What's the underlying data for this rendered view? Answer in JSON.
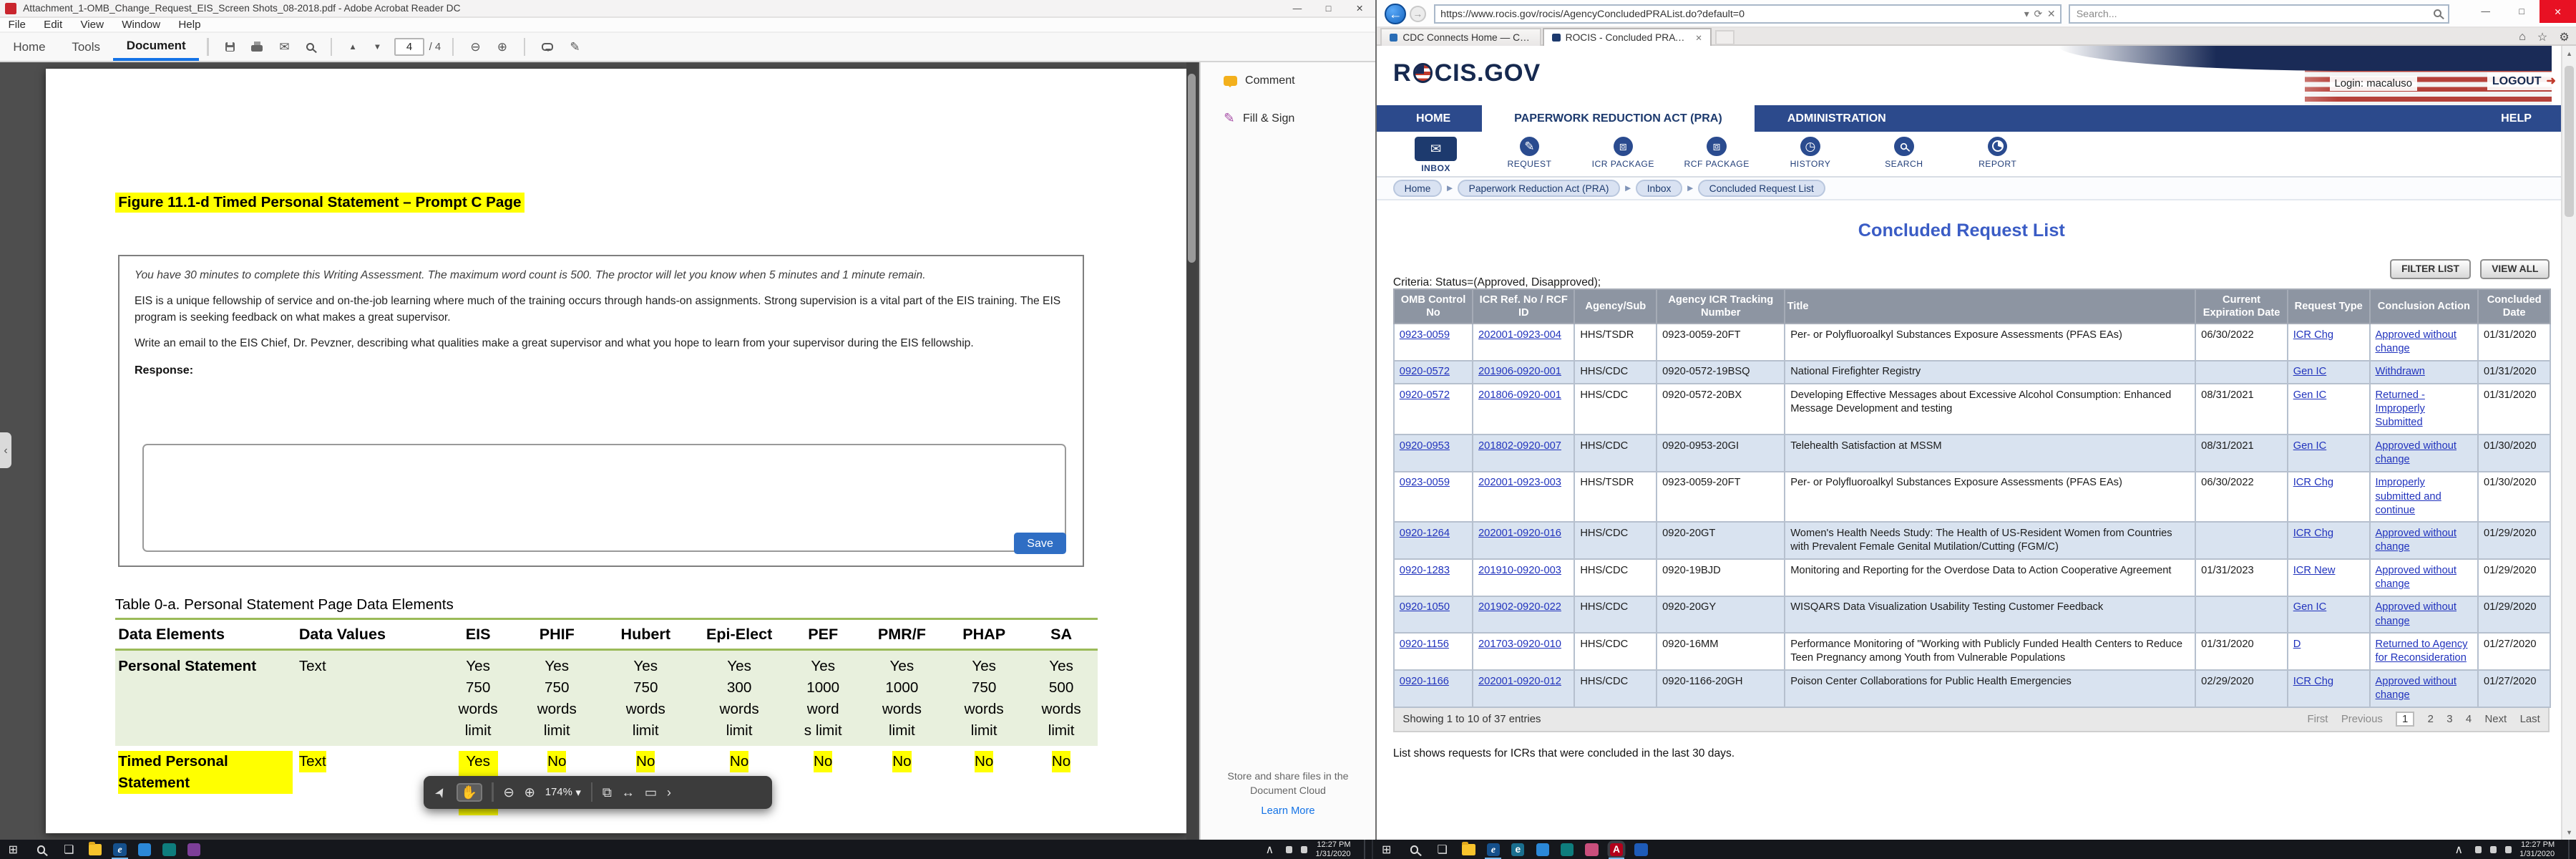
{
  "acrobat": {
    "window_title": "Attachment_1-OMB_Change_Request_EIS_Screen Shots_08-2018.pdf - Adobe Acrobat Reader DC",
    "menu_items": [
      "File",
      "Edit",
      "View",
      "Window",
      "Help"
    ],
    "tabs": {
      "home": "Home",
      "tools": "Tools",
      "document": "Document"
    },
    "page_current": "4",
    "page_total": "/ 4",
    "float_toolbar": {
      "zoom": "174%"
    },
    "right_panel": {
      "comment": "Comment",
      "fill_sign": "Fill & Sign",
      "cloud_text": "Store and share files in the Document Cloud",
      "learn_more": "Learn More"
    },
    "doc": {
      "figure_heading": "Figure 11.1-d Timed Personal Statement – Prompt C Page",
      "intro": "You have 30 minutes to complete this Writing Assessment. The maximum word count is 500. The proctor will let you know when 5 minutes and 1 minute remain.",
      "para1": "EIS is a unique fellowship of service and on-the-job learning where much of the training occurs through hands-on assignments. Strong supervision is a vital part of the EIS training. The EIS program is seeking feedback on what makes a great supervisor.",
      "para2": "Write an email to the EIS Chief, Dr. Pevzner, describing what qualities make a great supervisor and what you hope to learn from your supervisor during the EIS fellowship.",
      "response_label": "Response:",
      "save_button": "Save",
      "table_caption": "Table 0-a. Personal Statement Page Data Elements",
      "table": {
        "headers": [
          "Data Elements",
          "Data Values",
          "EIS",
          "PHIF",
          "Hubert",
          "Epi-Elect",
          "PEF",
          "PMR/F",
          "PHAP",
          "SA"
        ],
        "rows": [
          [
            "Personal Statement",
            "Text",
            "Yes\n750\nwords\nlimit",
            "Yes\n750\nwords\nlimit",
            "Yes\n750\nwords\nlimit",
            "Yes\n300\nwords\nlimit",
            "Yes\n1000\nword\ns limit",
            "Yes\n1000\nwords\nlimit",
            "Yes\n750\nwords\nlimit",
            "Yes\n500\nwords\nlimit"
          ],
          [
            "Timed Personal Statement",
            "Text",
            "Yes\n\nwords",
            "No",
            "No",
            "No",
            "No",
            "No",
            "No",
            "No"
          ]
        ]
      }
    }
  },
  "ie": {
    "url": "https://www.rocis.gov/rocis/AgencyConcludedPRAList.do?default=0",
    "search_placeholder": "Search...",
    "tab1": "CDC Connects Home — CDC ...",
    "tab2": "ROCIS - Concluded PRA Re..."
  },
  "rocis": {
    "logo_prefix": "R",
    "logo_suffix": "CIS.GOV",
    "login": "Login: macaluso",
    "logout": "LOGOUT",
    "nav": [
      "HOME",
      "PAPERWORK REDUCTION ACT (PRA)",
      "ADMINISTRATION"
    ],
    "help": "HELP",
    "toolbar_items": [
      "INBOX",
      "REQUEST",
      "ICR PACKAGE",
      "RCF PACKAGE",
      "HISTORY",
      "SEARCH",
      "REPORT"
    ],
    "breadcrumbs": [
      "Home",
      "Paperwork Reduction Act (PRA)",
      "Inbox",
      "Concluded Request List"
    ],
    "page_title": "Concluded Request List",
    "criteria": "Criteria: Status=(Approved, Disapproved);",
    "filter_list": "FILTER LIST",
    "view_all": "VIEW ALL",
    "table": {
      "headers": [
        "OMB Control No",
        "ICR Ref. No / RCF ID",
        "Agency/Sub",
        "Agency ICR Tracking Number",
        "Title",
        "Current Expiration Date",
        "Request Type",
        "Conclusion Action",
        "Concluded Date"
      ],
      "rows": [
        [
          "0923-0059",
          "202001-0923-004",
          "HHS/TSDR",
          "0923-0059-20FT",
          "Per- or Polyfluoroalkyl Substances Exposure Assessments (PFAS EAs)",
          "06/30/2022",
          "ICR Chg",
          "Approved without change",
          "01/31/2020"
        ],
        [
          "0920-0572",
          "201906-0920-001",
          "HHS/CDC",
          "0920-0572-19BSQ",
          "National Firefighter Registry",
          "",
          "Gen IC",
          "Withdrawn",
          "01/31/2020"
        ],
        [
          "0920-0572",
          "201806-0920-001",
          "HHS/CDC",
          "0920-0572-20BX",
          "Developing Effective Messages about Excessive Alcohol Consumption: Enhanced Message Development and testing",
          "08/31/2021",
          "Gen IC",
          "Returned - Improperly Submitted",
          "01/31/2020"
        ],
        [
          "0920-0953",
          "201802-0920-007",
          "HHS/CDC",
          "0920-0953-20GI",
          "Telehealth Satisfaction at MSSM",
          "08/31/2021",
          "Gen IC",
          "Approved without change",
          "01/30/2020"
        ],
        [
          "0923-0059",
          "202001-0923-003",
          "HHS/TSDR",
          "0923-0059-20FT",
          "Per- or Polyfluoroalkyl Substances Exposure Assessments (PFAS EAs)",
          "06/30/2022",
          "ICR Chg",
          "Improperly submitted and continue",
          "01/30/2020"
        ],
        [
          "0920-1264",
          "202001-0920-016",
          "HHS/CDC",
          "0920-20GT",
          "Women's Health Needs Study: The Health of US-Resident Women from Countries with Prevalent Female Genital Mutilation/Cutting (FGM/C)",
          "",
          "ICR Chg",
          "Approved without change",
          "01/29/2020"
        ],
        [
          "0920-1283",
          "201910-0920-003",
          "HHS/CDC",
          "0920-19BJD",
          "Monitoring and Reporting for the Overdose Data to Action Cooperative Agreement",
          "01/31/2023",
          "ICR New",
          "Approved without change",
          "01/29/2020"
        ],
        [
          "0920-1050",
          "201902-0920-022",
          "HHS/CDC",
          "0920-20GY",
          "WISQARS Data Visualization Usability Testing Customer Feedback",
          "",
          "Gen IC",
          "Approved without change",
          "01/29/2020"
        ],
        [
          "0920-1156",
          "201703-0920-010",
          "HHS/CDC",
          "0920-16MM",
          "Performance Monitoring of \"Working with Publicly Funded Health Centers to Reduce Teen Pregnancy among Youth from Vulnerable Populations",
          "01/31/2020",
          "D",
          "Returned to Agency for Reconsideration",
          "01/27/2020"
        ],
        [
          "0920-1166",
          "202001-0920-012",
          "HHS/CDC",
          "0920-1166-20GH",
          "Poison Center Collaborations for Public Health Emergencies",
          "02/29/2020",
          "ICR Chg",
          "Approved without change",
          "01/27/2020"
        ]
      ]
    },
    "showing": "Showing 1 to 10 of 37 entries",
    "pagination": [
      "First",
      "Previous",
      "1",
      "2",
      "3",
      "4",
      "Next",
      "Last"
    ],
    "footnote": "List shows requests for ICRs that were concluded in the last 30 days."
  },
  "taskbar": {
    "time": "12:27 PM",
    "date": "1/31/2020"
  }
}
